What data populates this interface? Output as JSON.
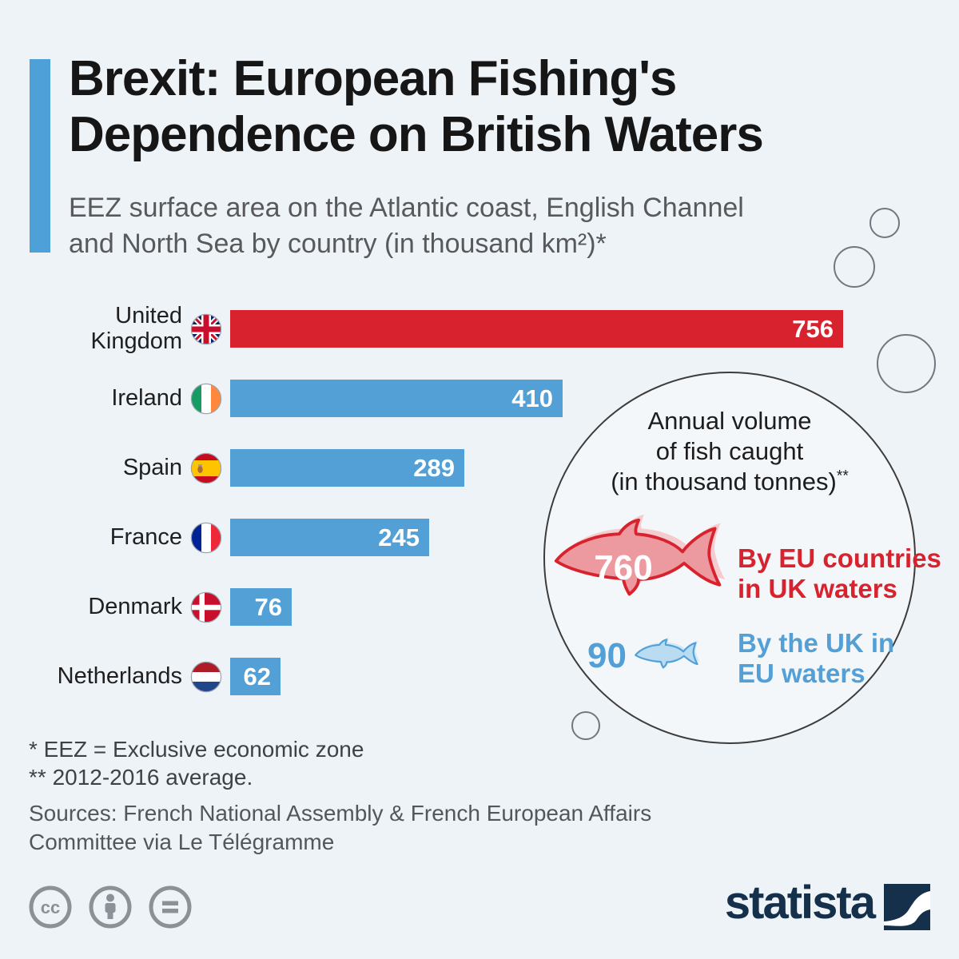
{
  "colors": {
    "background": "#eef3f8",
    "accent_blue": "#4da1d8",
    "bar_blue": "#53a0d6",
    "bar_red": "#d8232e",
    "title_text": "#161616",
    "subtitle_text": "#58595b",
    "brand_navy": "#15304a",
    "license_gray": "#8b9196"
  },
  "header": {
    "title": "Brexit: European Fishing's\nDependence on British Waters",
    "subtitle": "EEZ surface area on the Atlantic coast, English Channel\nand North Sea by country (in thousand km²)*"
  },
  "chart_data": {
    "type": "bar",
    "orientation": "horizontal",
    "title": "EEZ surface area on the Atlantic coast, English Channel and North Sea by country (in thousand km²)",
    "unit": "thousand km²",
    "categories": [
      "United Kingdom",
      "Ireland",
      "Spain",
      "France",
      "Denmark",
      "Netherlands"
    ],
    "display_labels": [
      "United\nKingdom",
      "Ireland",
      "Spain",
      "France",
      "Denmark",
      "Netherlands"
    ],
    "values": [
      756,
      410,
      289,
      245,
      76,
      62
    ],
    "value_labels": [
      "756",
      "410",
      "289",
      "245",
      "76",
      "62"
    ],
    "colors": [
      "#d8232e",
      "#53a0d6",
      "#53a0d6",
      "#53a0d6",
      "#53a0d6",
      "#53a0d6"
    ],
    "flags": [
      "united-kingdom",
      "ireland",
      "spain",
      "france",
      "denmark",
      "netherlands"
    ],
    "xlim": [
      0,
      780
    ],
    "grid": false,
    "legend_position": "none",
    "annotation": {
      "title": "Annual volume of fish caught (in thousand tonnes)**",
      "title_lines": [
        "Annual volume",
        "of fish caught",
        "(in thousand tonnes)"
      ],
      "title_sup": "**",
      "items": [
        {
          "value": "760",
          "label": "By EU countries in UK waters",
          "display_label": "By EU countries\nin UK waters",
          "color": "#d8232e",
          "icon": "big-fish"
        },
        {
          "value": "90",
          "label": "By the UK in EU waters",
          "display_label": "By the UK in\nEU waters",
          "color": "#53a0d6",
          "icon": "small-fish"
        }
      ]
    }
  },
  "footnotes": "*   EEZ = Exclusive economic zone\n** 2012-2016 average.",
  "sources": "Sources: French National Assembly & French European Affairs\nCommittee via Le Télégramme",
  "footer": {
    "brand": "statista",
    "license": "CC BY-ND",
    "license_icons": [
      "cc",
      "attribution",
      "no-derivatives"
    ]
  }
}
